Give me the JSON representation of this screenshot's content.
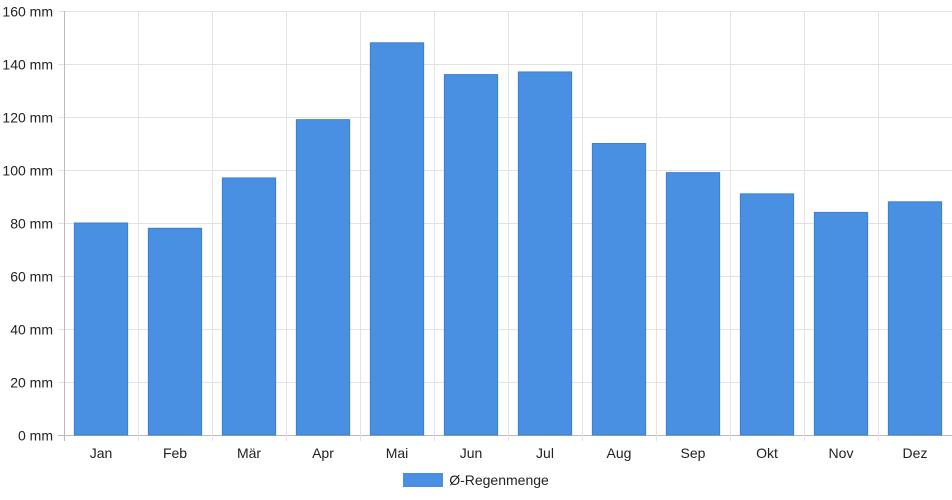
{
  "chart_data": {
    "type": "bar",
    "categories": [
      "Jan",
      "Feb",
      "Mär",
      "Apr",
      "Mai",
      "Jun",
      "Jul",
      "Aug",
      "Sep",
      "Okt",
      "Nov",
      "Dez"
    ],
    "series": [
      {
        "name": "Ø-Regenmenge",
        "color": "#4a90e2",
        "values": [
          80,
          78,
          97,
          119,
          148,
          136,
          137,
          110,
          99,
          91,
          84,
          88
        ]
      }
    ],
    "y_ticks": [
      "0 mm",
      "20 mm",
      "40 mm",
      "60 mm",
      "80 mm",
      "100 mm",
      "120 mm",
      "140 mm",
      "160 mm"
    ],
    "ylim": [
      0,
      160
    ],
    "grid": true,
    "legend_position": "bottom"
  }
}
